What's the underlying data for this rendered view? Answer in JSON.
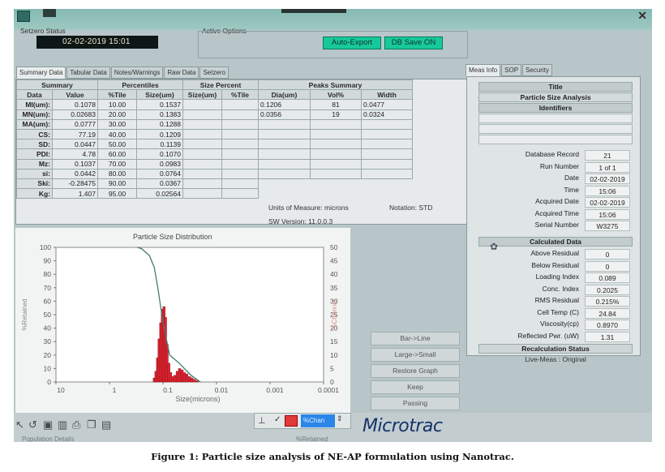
{
  "setzero": {
    "label": "Setzero Status",
    "datetime": "02-02-2019 15:01"
  },
  "active_options": {
    "label": "Active Options",
    "auto_export": "Auto-Export",
    "db_save": "DB Save ON"
  },
  "left_tabs": [
    "Summary Data",
    "Tabular Data",
    "Notes/Warnings",
    "Raw Data",
    "Setzero"
  ],
  "right_tabs": [
    "Meas Info",
    "SOP",
    "Security"
  ],
  "summary": {
    "group_headers": {
      "summary": "Summary",
      "percentiles": "Percentiles",
      "size_percent": "Size Percent",
      "peaks": "Peaks Summary"
    },
    "col_headers": {
      "data": "Data",
      "value": "Value",
      "tile": "%Tile",
      "size": "Size(um)",
      "sp_size": "Size(um)",
      "sp_tile": "%Tile",
      "dia": "Dia(um)",
      "vol": "Vol%",
      "width": "Width"
    },
    "rows": [
      {
        "label": "MI(um):",
        "value": "0.1078",
        "tile": "10.00",
        "size": "0.1537"
      },
      {
        "label": "MN(um):",
        "value": "0.02683",
        "tile": "20.00",
        "size": "0.1383"
      },
      {
        "label": "MA(um):",
        "value": "0.0777",
        "tile": "30.00",
        "size": "0.1288"
      },
      {
        "label": "CS:",
        "value": "77.19",
        "tile": "40.00",
        "size": "0.1209"
      },
      {
        "label": "SD:",
        "value": "0.0447",
        "tile": "50.00",
        "size": "0.1139"
      },
      {
        "label": "PDI:",
        "value": "4.78",
        "tile": "60.00",
        "size": "0.1070"
      },
      {
        "label": "Mz:",
        "value": "0.1037",
        "tile": "70.00",
        "size": "0.0983"
      },
      {
        "label": "si:",
        "value": "0.0442",
        "tile": "80.00",
        "size": "0.0764"
      },
      {
        "label": "Ski:",
        "value": "-0.28475",
        "tile": "90.00",
        "size": "0.0367"
      },
      {
        "label": "Kg:",
        "value": "1.407",
        "tile": "95.00",
        "size": "0.02564"
      }
    ],
    "peaks": [
      {
        "dia": "0.1206",
        "vol": "81",
        "width": "0.0477"
      },
      {
        "dia": "0.0356",
        "vol": "19",
        "width": "0.0324"
      }
    ]
  },
  "units": {
    "label": "Units of Measure:",
    "value": "microns",
    "notation_label": "Notation:",
    "notation_value": "STD",
    "sw_label": "SW Version:",
    "sw_value": "11.0.0.3"
  },
  "chart_data": {
    "type": "bar",
    "title": "Particle Size Distribution",
    "xlabel": "Size(microns)",
    "ylabel_left": "%Retained",
    "ylabel_right": "%Channel",
    "x_ticks": [
      "10",
      "1",
      "0.1",
      "0.01",
      "0.001",
      "0.0001"
    ],
    "y_left_ticks": [
      "100",
      "90",
      "80",
      "70",
      "60",
      "50",
      "40",
      "30",
      "20",
      "10",
      "0"
    ],
    "y_right_ticks": [
      "50",
      "45",
      "40",
      "35",
      "30",
      "25",
      "20",
      "15",
      "10",
      "5",
      "0"
    ],
    "y_left_lim": [
      0,
      100
    ],
    "y_right_lim": [
      0,
      50
    ],
    "bars": [
      {
        "size": 0.145,
        "channel": 1.5
      },
      {
        "size": 0.135,
        "channel": 4
      },
      {
        "size": 0.126,
        "channel": 9
      },
      {
        "size": 0.118,
        "channel": 16
      },
      {
        "size": 0.11,
        "channel": 22
      },
      {
        "size": 0.103,
        "channel": 27
      },
      {
        "size": 0.096,
        "channel": 28
      },
      {
        "size": 0.09,
        "channel": 24
      },
      {
        "size": 0.084,
        "channel": 14
      },
      {
        "size": 0.078,
        "channel": 7
      },
      {
        "size": 0.072,
        "channel": 3.5
      },
      {
        "size": 0.066,
        "channel": 2
      },
      {
        "size": 0.06,
        "channel": 2.5
      },
      {
        "size": 0.054,
        "channel": 4
      },
      {
        "size": 0.049,
        "channel": 5
      },
      {
        "size": 0.044,
        "channel": 4.5
      },
      {
        "size": 0.04,
        "channel": 3.5
      },
      {
        "size": 0.036,
        "channel": 3
      },
      {
        "size": 0.032,
        "channel": 2
      },
      {
        "size": 0.029,
        "channel": 1.5
      },
      {
        "size": 0.026,
        "channel": 1
      },
      {
        "size": 0.023,
        "channel": 0.5
      }
    ],
    "cumulative": [
      {
        "size": 0.02,
        "retained": 0
      },
      {
        "size": 0.03,
        "retained": 5
      },
      {
        "size": 0.05,
        "retained": 14
      },
      {
        "size": 0.075,
        "retained": 20
      },
      {
        "size": 0.09,
        "retained": 35
      },
      {
        "size": 0.1,
        "retained": 45
      },
      {
        "size": 0.11,
        "retained": 55
      },
      {
        "size": 0.125,
        "retained": 70
      },
      {
        "size": 0.145,
        "retained": 85
      },
      {
        "size": 0.18,
        "retained": 94
      },
      {
        "size": 0.25,
        "retained": 99
      },
      {
        "size": 0.3,
        "retained": 100
      }
    ],
    "colors": {
      "bars": "#d8232f",
      "line": "#3f7c70"
    }
  },
  "side_buttons": [
    "Bar->Line",
    "Large->Small",
    "Restore Graph",
    "Keep",
    "Passing"
  ],
  "toolbar": {
    "select_label": "%Chan"
  },
  "logo": "Microtrac",
  "status_bottom": "Population Details",
  "status_retained": "%Retained",
  "right_panel": {
    "title_head": "Title",
    "title_value": "Particle Size Analysis",
    "identifiers_head": "Identifiers",
    "meas": [
      {
        "k": "Database Record",
        "v": "21"
      },
      {
        "k": "Run Number",
        "v": "1 of 1"
      },
      {
        "k": "Date",
        "v": "02-02-2019"
      },
      {
        "k": "Time",
        "v": "15:06"
      },
      {
        "k": "Acquired Date",
        "v": "02-02-2019"
      },
      {
        "k": "Acquired Time",
        "v": "15:06"
      },
      {
        "k": "Serial Number",
        "v": "W3275"
      }
    ],
    "calc_head": "Calculated Data",
    "calc": [
      {
        "k": "Above Residual",
        "v": "0"
      },
      {
        "k": "Below Residual",
        "v": "0"
      },
      {
        "k": "Loading Index",
        "v": "0.089"
      },
      {
        "k": "Conc. Index",
        "v": "0.2025"
      },
      {
        "k": "RMS Residual",
        "v": "0.215%"
      },
      {
        "k": "Cell Temp (C)",
        "v": "24.84"
      },
      {
        "k": "Viscosity(cp)",
        "v": "0.8970"
      },
      {
        "k": "Reflected Pwr. (uW)",
        "v": "1.31"
      }
    ],
    "recalc_head": "Recalculation Status",
    "recalc_value": "Live-Meas : Original"
  },
  "caption": "Figure 1: Particle size analysis of NE-AP formulation using Nanotrac."
}
